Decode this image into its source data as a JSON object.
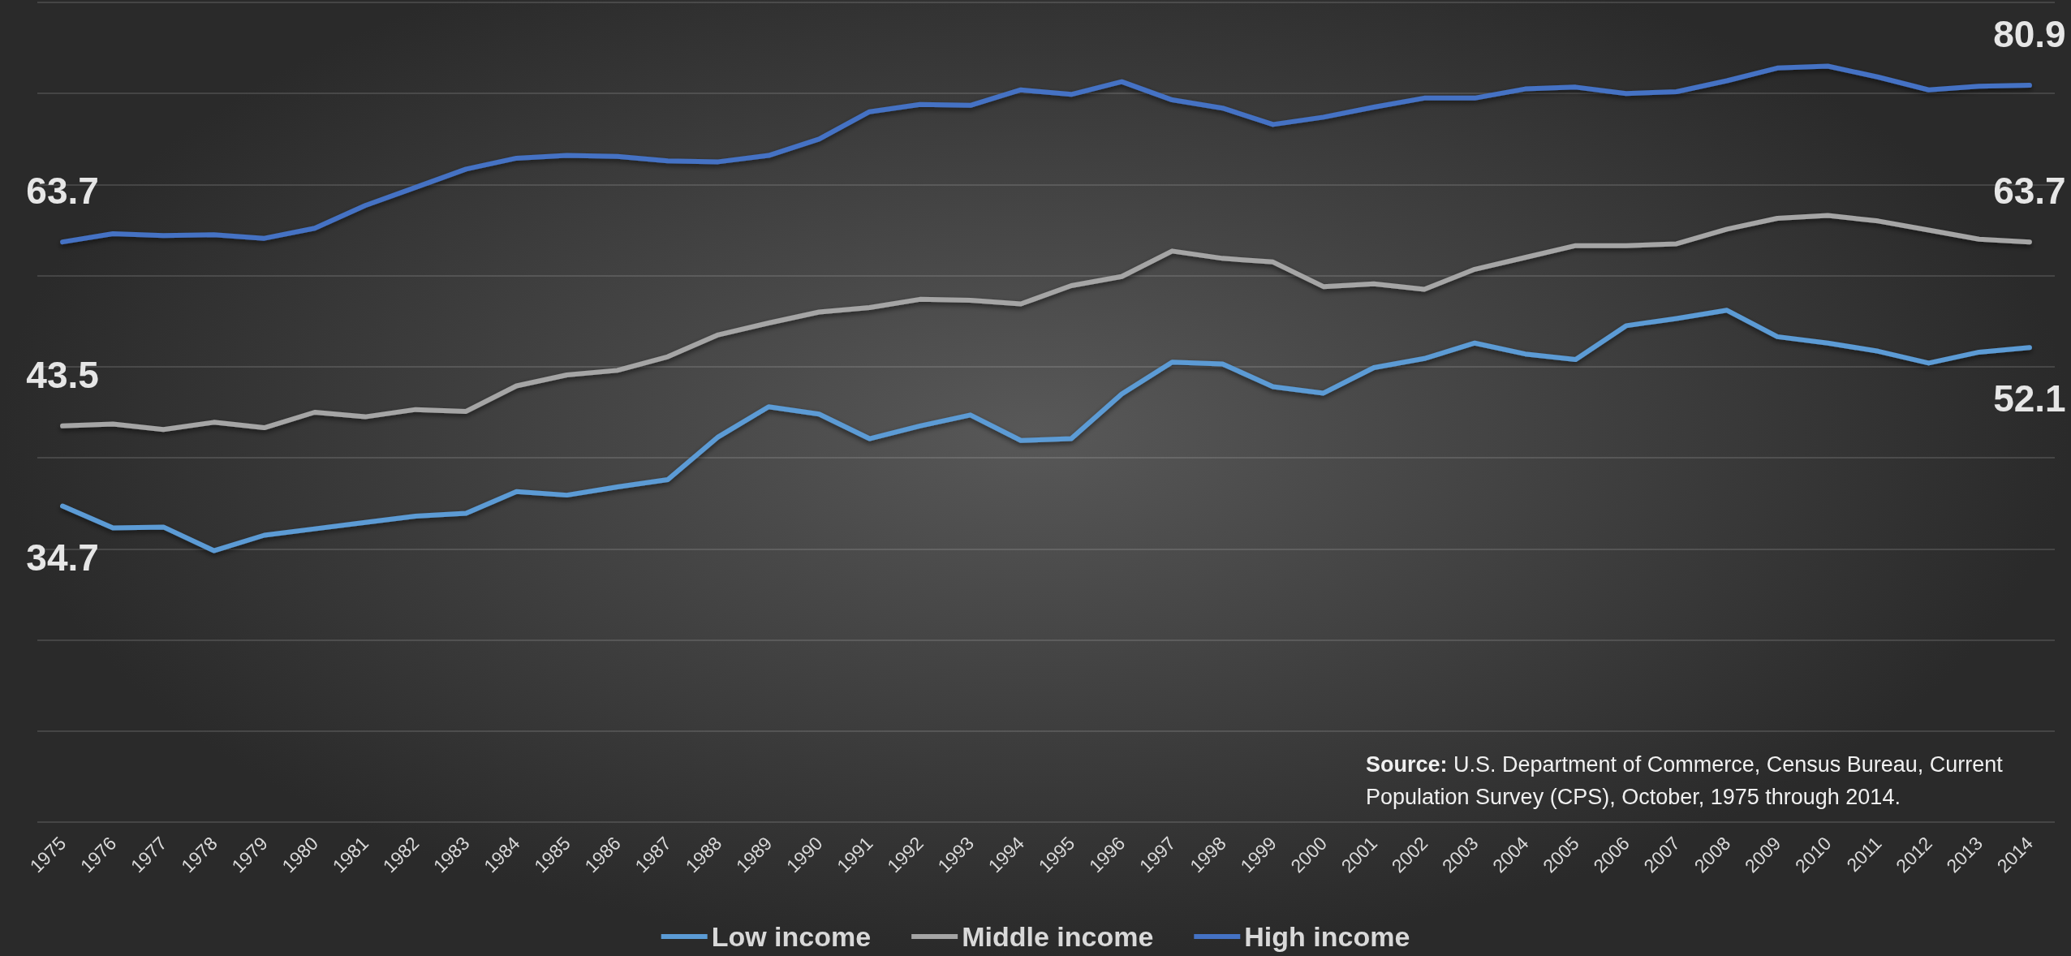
{
  "chart_data": {
    "type": "line",
    "categories": [
      "1975",
      "1976",
      "1977",
      "1978",
      "1979",
      "1980",
      "1981",
      "1982",
      "1983",
      "1984",
      "1985",
      "1986",
      "1987",
      "1988",
      "1989",
      "1990",
      "1991",
      "1992",
      "1993",
      "1994",
      "1995",
      "1996",
      "1997",
      "1998",
      "1999",
      "2000",
      "2001",
      "2002",
      "2003",
      "2004",
      "2005",
      "2006",
      "2007",
      "2008",
      "2009",
      "2010",
      "2011",
      "2012",
      "2013",
      "2014"
    ],
    "series": [
      {
        "name": "Low income",
        "color": "#5b9bd5",
        "values": [
          34.7,
          32.3,
          32.4,
          29.8,
          31.5,
          32.2,
          32.9,
          33.6,
          33.9,
          36.3,
          35.9,
          36.8,
          37.6,
          42.3,
          45.6,
          44.8,
          42.1,
          43.5,
          44.7,
          41.9,
          42.1,
          47.0,
          50.5,
          50.3,
          47.8,
          47.1,
          49.9,
          50.9,
          52.6,
          51.4,
          50.8,
          54.5,
          55.3,
          56.2,
          53.3,
          52.6,
          51.7,
          50.4,
          51.6,
          52.1
        ],
        "value_labels": [
          "34.7",
          null,
          null,
          null,
          null,
          null,
          null,
          null,
          null,
          null,
          null,
          null,
          null,
          null,
          null,
          null,
          null,
          null,
          null,
          null,
          null,
          null,
          null,
          null,
          null,
          null,
          null,
          null,
          null,
          null,
          null,
          null,
          null,
          null,
          null,
          null,
          null,
          null,
          null,
          "52.1"
        ]
      },
      {
        "name": "Middle income",
        "color": "#a5a5a5",
        "values": [
          43.5,
          43.7,
          43.1,
          43.9,
          43.3,
          45.0,
          44.5,
          45.3,
          45.1,
          47.9,
          49.1,
          49.6,
          51.1,
          53.5,
          54.8,
          56.0,
          56.5,
          57.4,
          57.3,
          56.9,
          58.9,
          59.9,
          62.7,
          61.9,
          61.5,
          58.8,
          59.1,
          58.5,
          60.7,
          62.0,
          63.3,
          63.3,
          63.5,
          65.1,
          66.3,
          66.6,
          66.0,
          65.0,
          64.0,
          63.7
        ],
        "value_labels": [
          "43.5",
          null,
          null,
          null,
          null,
          null,
          null,
          null,
          null,
          null,
          null,
          null,
          null,
          null,
          null,
          null,
          null,
          null,
          null,
          null,
          null,
          null,
          null,
          null,
          null,
          null,
          null,
          null,
          null,
          null,
          null,
          null,
          null,
          null,
          null,
          null,
          null,
          null,
          null,
          "63.7"
        ]
      },
      {
        "name": "High income",
        "color": "#4472c4",
        "values": [
          63.7,
          64.6,
          64.4,
          64.5,
          64.1,
          65.2,
          67.7,
          69.7,
          71.7,
          72.9,
          73.2,
          73.1,
          72.6,
          72.5,
          73.2,
          75.0,
          78.0,
          78.8,
          78.7,
          80.4,
          79.9,
          81.3,
          79.3,
          78.4,
          76.6,
          77.4,
          78.5,
          79.5,
          79.5,
          80.5,
          80.7,
          80.0,
          80.2,
          81.4,
          82.8,
          83.0,
          81.8,
          80.4,
          80.8,
          80.9
        ],
        "value_labels": [
          "63.7",
          null,
          null,
          null,
          null,
          null,
          null,
          null,
          null,
          null,
          null,
          null,
          null,
          null,
          null,
          null,
          null,
          null,
          null,
          null,
          null,
          null,
          null,
          null,
          null,
          null,
          null,
          null,
          null,
          null,
          null,
          null,
          null,
          null,
          null,
          null,
          null,
          null,
          null,
          "80.9"
        ]
      }
    ],
    "ylim": [
      0,
      90
    ],
    "yticks": [
      {
        "value": 0,
        "label": null
      },
      {
        "value": 10,
        "label": null
      },
      {
        "value": 20,
        "label": null
      },
      {
        "value": 30,
        "label": null
      },
      {
        "value": 40,
        "label": null
      },
      {
        "value": 50,
        "label": null
      },
      {
        "value": 60,
        "label": null
      },
      {
        "value": 70,
        "label": null
      },
      {
        "value": 80,
        "label": null
      },
      {
        "value": 90,
        "label": null
      }
    ],
    "tick_labels": "x",
    "grid": "y",
    "legend": "bottom",
    "marker": "none",
    "line_style": "solid",
    "annotations": [
      "Source: U.S. Department of Commerce, Census Bureau, Current Population Survey (CPS), October, 1975 through 2014."
    ]
  }
}
